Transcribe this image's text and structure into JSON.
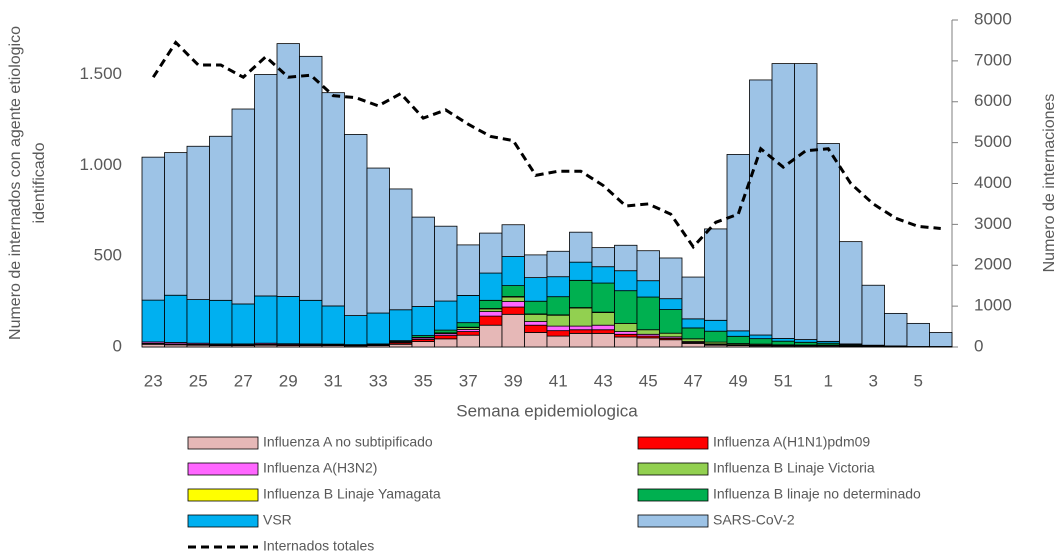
{
  "chart_data": {
    "type": "bar",
    "stacked": true,
    "xlabel": "Semana epidemiologica",
    "ylabel": [
      "Numero de internados con agente etiologico",
      "identificado"
    ],
    "y2label": "Numero de internaciones",
    "categories": [
      "23",
      null,
      "25",
      null,
      "27",
      null,
      "29",
      null,
      "31",
      null,
      "33",
      null,
      "35",
      null,
      "37",
      null,
      "39",
      null,
      "41",
      null,
      "43",
      null,
      "45",
      null,
      "47",
      null,
      "49",
      null,
      "51",
      null,
      "1",
      null,
      "3",
      null,
      "5",
      null
    ],
    "ylim": [
      0,
      1800
    ],
    "yticks": [
      0,
      500,
      {
        "value": 1000,
        "label": "1.000"
      },
      {
        "value": 1500,
        "label": "1.500"
      }
    ],
    "y2lim": [
      0,
      8000
    ],
    "y2ticks": [
      0,
      1000,
      2000,
      3000,
      4000,
      5000,
      6000,
      7000,
      8000
    ],
    "grid": false,
    "series": [
      {
        "name": "Influenza A no subtipificado",
        "color": "#e6b8b7",
        "values": [
          15,
          12,
          10,
          8,
          8,
          10,
          8,
          8,
          8,
          6,
          8,
          15,
          30,
          45,
          65,
          120,
          180,
          80,
          60,
          75,
          75,
          55,
          50,
          40,
          20,
          10,
          8,
          6,
          5,
          5,
          5,
          3,
          2,
          1,
          1,
          1
        ]
      },
      {
        "name": "Influenza A(H1N1)pdm09",
        "color": "#ff0000",
        "values": [
          5,
          5,
          5,
          4,
          4,
          5,
          5,
          4,
          4,
          3,
          4,
          8,
          12,
          18,
          20,
          50,
          40,
          40,
          30,
          20,
          20,
          15,
          10,
          8,
          5,
          4,
          3,
          3,
          2,
          2,
          2,
          1,
          1,
          0,
          0,
          0
        ]
      },
      {
        "name": "Influenza A(H3N2)",
        "color": "#ff66ff",
        "values": [
          8,
          8,
          6,
          5,
          5,
          6,
          5,
          5,
          4,
          3,
          3,
          5,
          8,
          10,
          12,
          25,
          30,
          20,
          25,
          20,
          25,
          15,
          10,
          8,
          5,
          3,
          2,
          2,
          1,
          1,
          1,
          1,
          0,
          0,
          0,
          0
        ]
      },
      {
        "name": "Influenza B Linaje Victoria",
        "color": "#92d050",
        "values": [
          0,
          0,
          0,
          0,
          0,
          0,
          0,
          0,
          0,
          0,
          0,
          2,
          3,
          5,
          10,
          15,
          25,
          40,
          60,
          100,
          70,
          45,
          25,
          20,
          15,
          10,
          6,
          5,
          4,
          3,
          3,
          2,
          1,
          1,
          0,
          0
        ]
      },
      {
        "name": "Influenza B Linaje Yamagata",
        "color": "#ffff00",
        "values": [
          0,
          0,
          0,
          0,
          0,
          0,
          0,
          0,
          0,
          0,
          0,
          0,
          0,
          0,
          2,
          2,
          3,
          2,
          2,
          2,
          2,
          0,
          0,
          0,
          0,
          0,
          0,
          0,
          0,
          0,
          0,
          0,
          0,
          0,
          0,
          0
        ]
      },
      {
        "name": "Influenza B linaje no determinado",
        "color": "#00b050",
        "values": [
          0,
          0,
          0,
          0,
          0,
          0,
          0,
          0,
          0,
          1,
          2,
          5,
          10,
          15,
          25,
          45,
          60,
          70,
          100,
          150,
          160,
          180,
          180,
          130,
          60,
          60,
          40,
          30,
          20,
          15,
          10,
          5,
          3,
          2,
          1,
          1
        ]
      },
      {
        "name": "VSR",
        "color": "#00b0f0",
        "values": [
          230,
          260,
          240,
          240,
          220,
          260,
          260,
          240,
          210,
          160,
          170,
          170,
          160,
          160,
          150,
          150,
          160,
          130,
          110,
          100,
          90,
          110,
          90,
          60,
          50,
          60,
          30,
          20,
          15,
          15,
          10,
          5,
          3,
          2,
          1,
          1
        ]
      },
      {
        "name": "SARS-CoV-2",
        "color": "#9dc3e6",
        "values": [
          787,
          785,
          844,
          903,
          1073,
          1219,
          1392,
          1343,
          1174,
          997,
          798,
          665,
          492,
          412,
          278,
          220,
          175,
          125,
          140,
          165,
          105,
          140,
          165,
          224,
          230,
          503,
          971,
          1404,
          1513,
          1519,
          1089,
          563,
          330,
          179,
          127,
          77
        ]
      },
      {
        "name": "Internados totales",
        "type": "line",
        "axis": "y2",
        "color": "#000000",
        "dashed": true,
        "values": [
          6600,
          7450,
          6900,
          6900,
          6600,
          7100,
          6600,
          6650,
          6150,
          6100,
          5900,
          6200,
          5600,
          5800,
          5450,
          5150,
          5050,
          4200,
          4300,
          4300,
          3950,
          3450,
          3500,
          3250,
          2450,
          3050,
          3250,
          4850,
          4400,
          4800,
          4850,
          4000,
          3500,
          3150,
          2950,
          2900
        ]
      }
    ]
  }
}
